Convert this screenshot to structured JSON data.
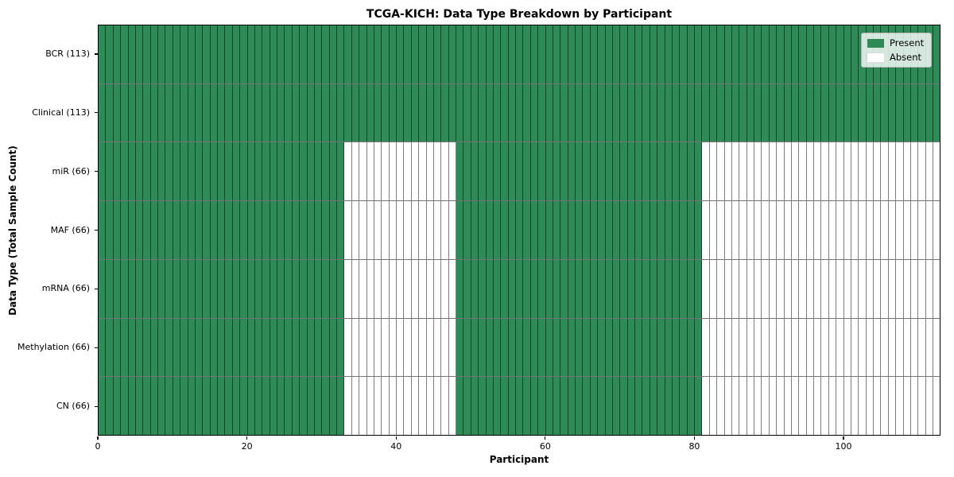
{
  "chart_data": {
    "type": "heatmap",
    "title": "TCGA-KICH: Data Type Breakdown by Participant",
    "xlabel": "Participant",
    "ylabel": "Data Type (Total Sample Count)",
    "x_ticks": [
      0,
      20,
      40,
      60,
      80,
      100
    ],
    "x_range": [
      0,
      113
    ],
    "n_participants": 113,
    "grid": "cell-borders",
    "legend_position": "upper-right",
    "rows": [
      {
        "label": "BCR (113)",
        "total_samples": 113,
        "present_ranges": [
          [
            0,
            113
          ]
        ]
      },
      {
        "label": "Clinical (113)",
        "total_samples": 113,
        "present_ranges": [
          [
            0,
            113
          ]
        ]
      },
      {
        "label": "miR (66)",
        "total_samples": 66,
        "present_ranges": [
          [
            0,
            33
          ],
          [
            48,
            81
          ]
        ]
      },
      {
        "label": "MAF (66)",
        "total_samples": 66,
        "present_ranges": [
          [
            0,
            33
          ],
          [
            48,
            81
          ]
        ]
      },
      {
        "label": "mRNA (66)",
        "total_samples": 66,
        "present_ranges": [
          [
            0,
            33
          ],
          [
            48,
            81
          ]
        ]
      },
      {
        "label": "Methylation (66)",
        "total_samples": 66,
        "present_ranges": [
          [
            0,
            33
          ],
          [
            48,
            81
          ]
        ]
      },
      {
        "label": "CN (66)",
        "total_samples": 66,
        "present_ranges": [
          [
            0,
            33
          ],
          [
            48,
            81
          ]
        ]
      }
    ],
    "legend": [
      {
        "label": "Present",
        "color": "#2e8b57"
      },
      {
        "label": "Absent",
        "color": "#ffffff"
      }
    ]
  }
}
